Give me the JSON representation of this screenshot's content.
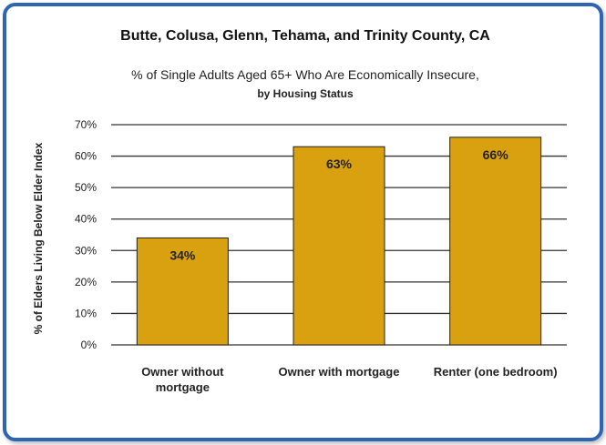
{
  "chart_data": {
    "type": "bar",
    "title": "Butte, Colusa, Glenn, Tehama, and Trinity County, CA",
    "subtitle_line1": "% of Single Adults Aged 65+ Who Are Economically Insecure,",
    "subtitle_line2": "by Housing Status",
    "ylabel": "% of Elders Living Below Elder Index",
    "xlabel": "",
    "categories": [
      [
        "Owner without",
        "mortgage"
      ],
      [
        "Owner with mortgage"
      ],
      [
        "Renter (one bedroom)"
      ]
    ],
    "values": [
      34,
      63,
      66
    ],
    "data_labels": [
      "34%",
      "63%",
      "66%"
    ],
    "ylim": [
      0,
      70
    ],
    "yticks": [
      "0%",
      "10%",
      "20%",
      "30%",
      "40%",
      "50%",
      "60%",
      "70%"
    ],
    "grid": true,
    "bar_color": "#d9a110",
    "frame_color": "#2f63b3"
  }
}
